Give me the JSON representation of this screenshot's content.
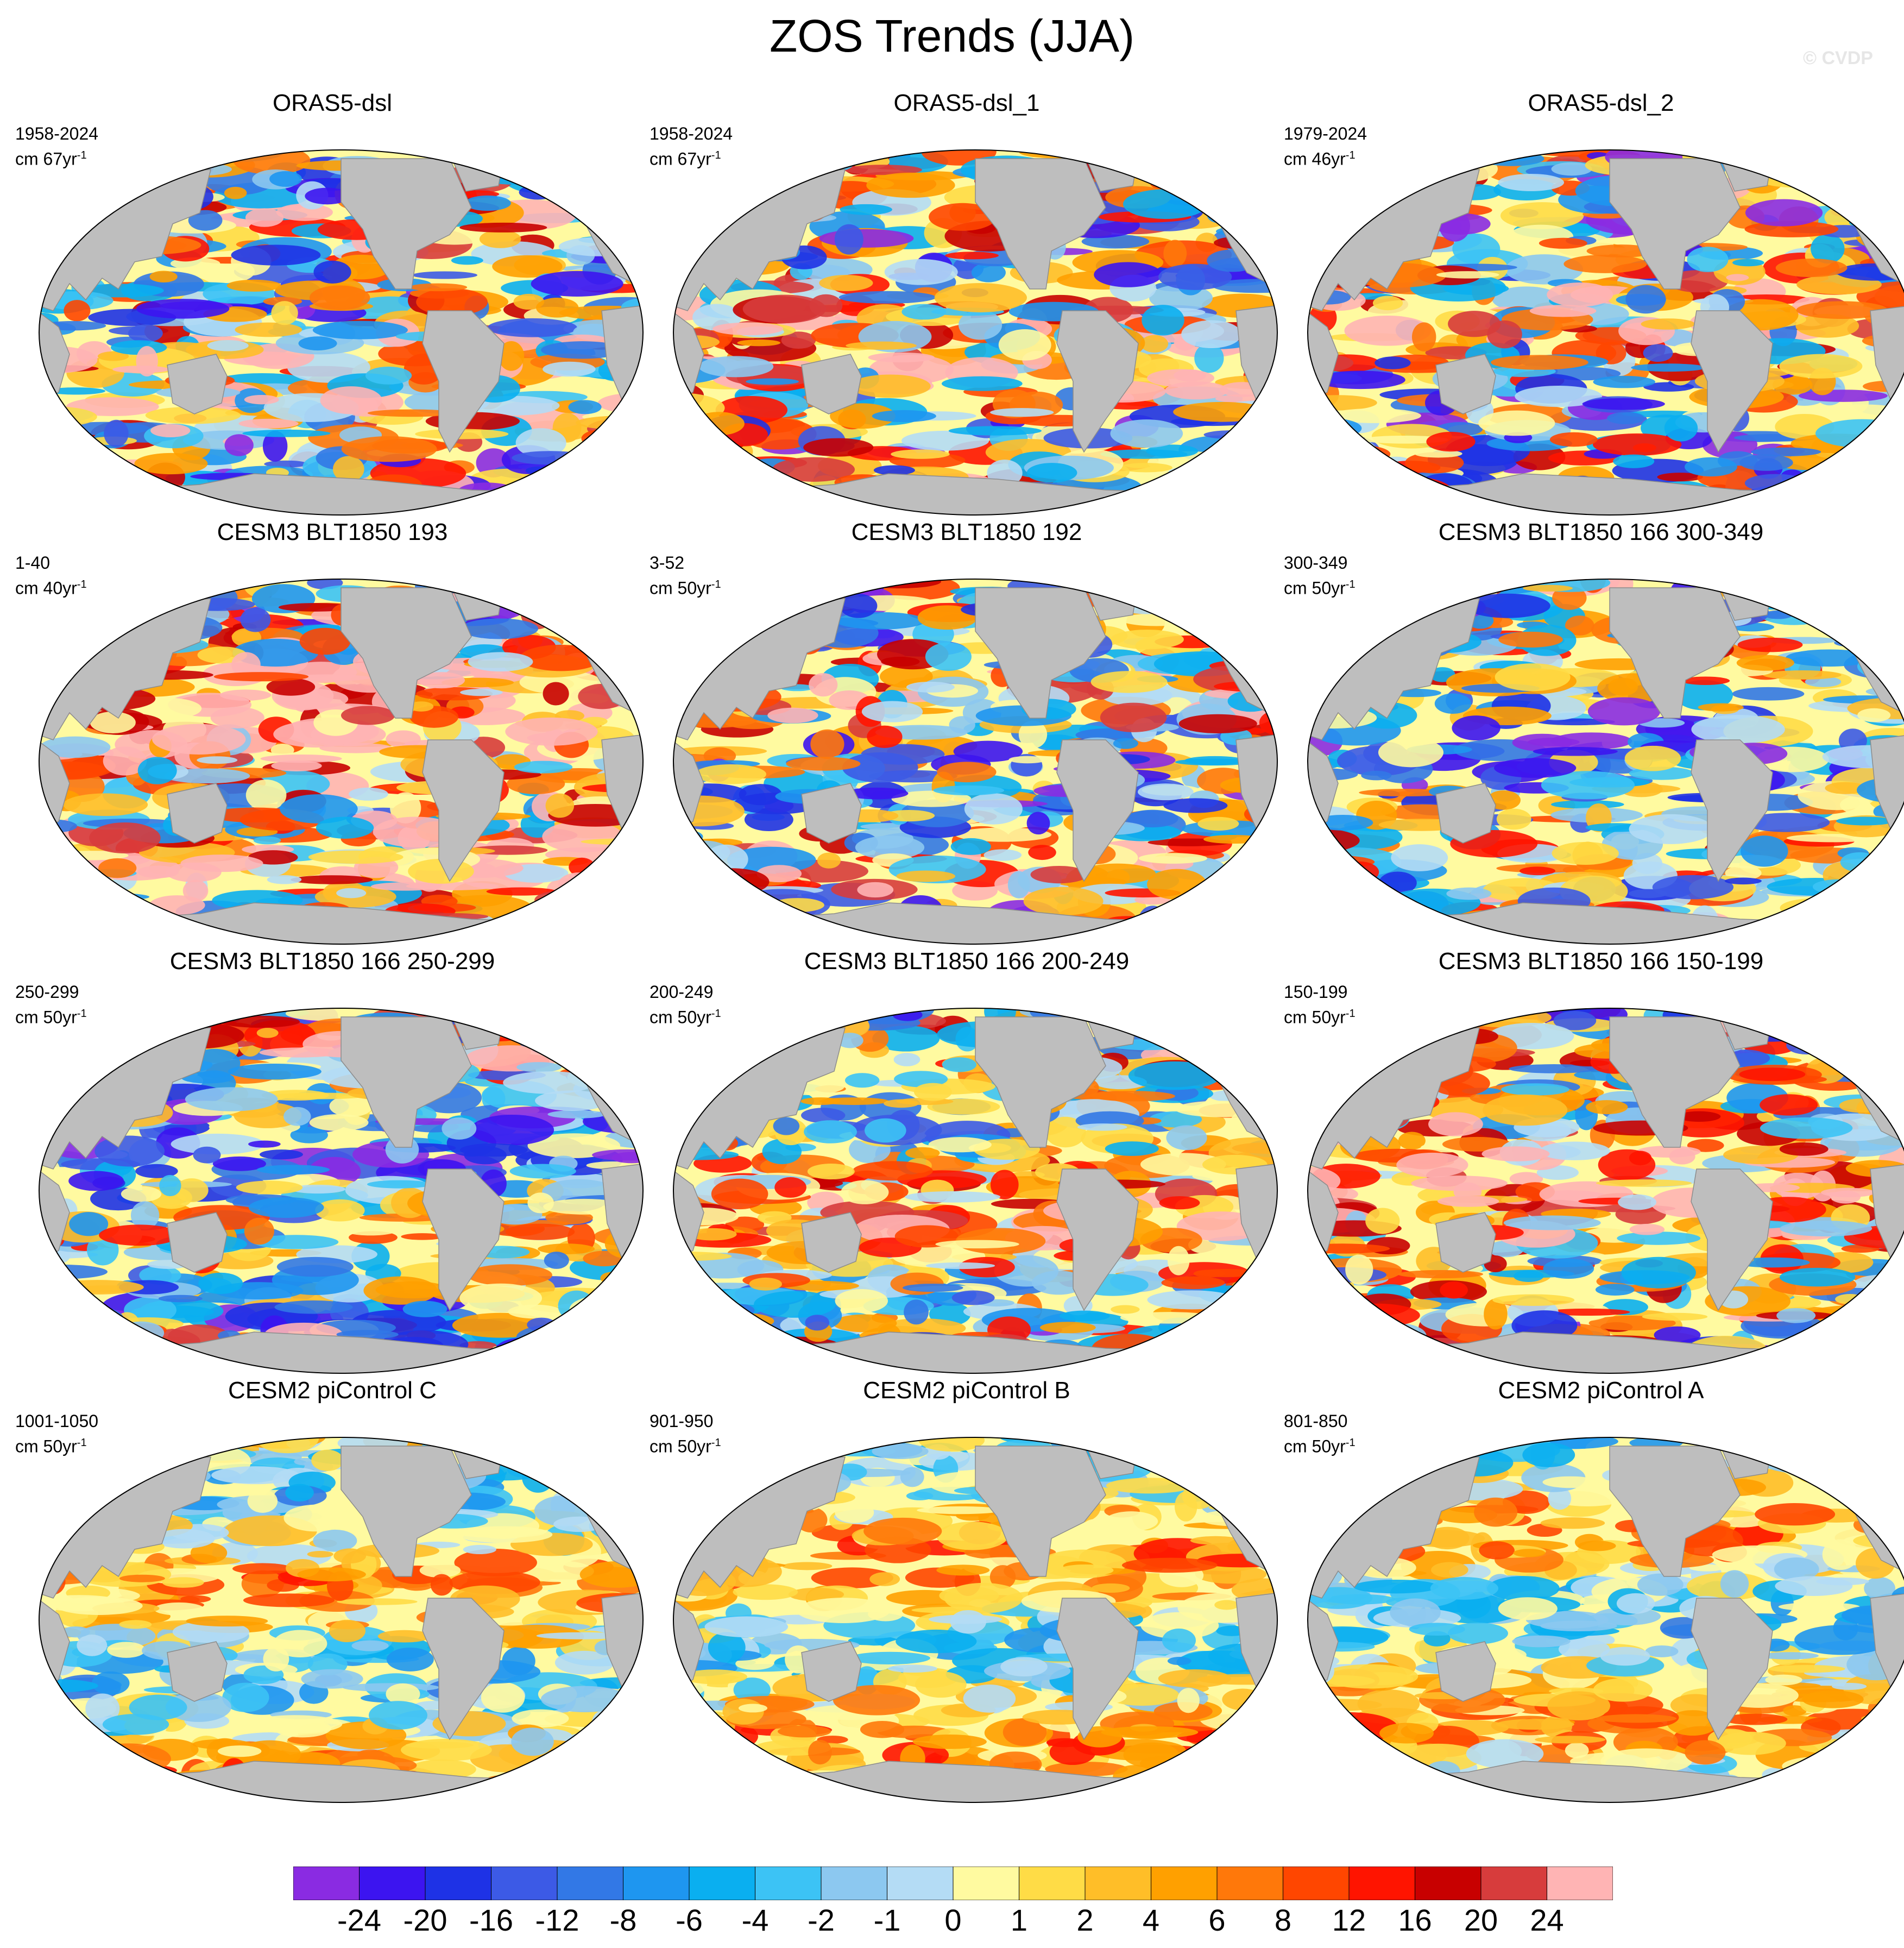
{
  "title": "ZOS Trends (JJA)",
  "watermark": "© CVDP",
  "colorbar": {
    "labels": [
      "-24",
      "-20",
      "-16",
      "-12",
      "-8",
      "-6",
      "-4",
      "-2",
      "-1",
      "0",
      "1",
      "2",
      "4",
      "6",
      "8",
      "12",
      "16",
      "20",
      "24"
    ],
    "colors": [
      "#8a2be2",
      "#3c14f0",
      "#1e32e6",
      "#3c5ae6",
      "#3278e6",
      "#1e96f0",
      "#0aaff0",
      "#3cc3f5",
      "#8cc8f0",
      "#b4dcf5",
      "#fffaa0",
      "#ffdc46",
      "#ffbe28",
      "#ffa000",
      "#ff780a",
      "#ff4600",
      "#ff1400",
      "#c80000",
      "#d73c3c",
      "#ffb4b4"
    ]
  },
  "panels": [
    {
      "title": "ORAS5-dsl",
      "period": "1958-2024",
      "units": "cm 67yr",
      "units_sup": "-1"
    },
    {
      "title": "ORAS5-dsl_1",
      "period": "1958-2024",
      "units": "cm 67yr",
      "units_sup": "-1"
    },
    {
      "title": "ORAS5-dsl_2",
      "period": "1979-2024",
      "units": "cm 46yr",
      "units_sup": "-1"
    },
    {
      "title": "CESM3 BLT1850 193",
      "period": "1-40",
      "units": "cm 40yr",
      "units_sup": "-1"
    },
    {
      "title": "CESM3 BLT1850 192",
      "period": "3-52",
      "units": "cm 50yr",
      "units_sup": "-1"
    },
    {
      "title": "CESM3 BLT1850 166 300-349",
      "period": "300-349",
      "units": "cm 50yr",
      "units_sup": "-1"
    },
    {
      "title": "CESM3 BLT1850 166 250-299",
      "period": "250-299",
      "units": "cm 50yr",
      "units_sup": "-1"
    },
    {
      "title": "CESM3 BLT1850 166 200-249",
      "period": "200-249",
      "units": "cm 50yr",
      "units_sup": "-1"
    },
    {
      "title": "CESM3 BLT1850 166 150-199",
      "period": "150-199",
      "units": "cm 50yr",
      "units_sup": "-1"
    },
    {
      "title": "CESM2 piControl C",
      "period": "1001-1050",
      "units": "cm 50yr",
      "units_sup": "-1"
    },
    {
      "title": "CESM2 piControl B",
      "period": "901-950",
      "units": "cm 50yr",
      "units_sup": "-1"
    },
    {
      "title": "CESM2 piControl A",
      "period": "801-850",
      "units": "cm 50yr",
      "units_sup": "-1"
    }
  ]
}
